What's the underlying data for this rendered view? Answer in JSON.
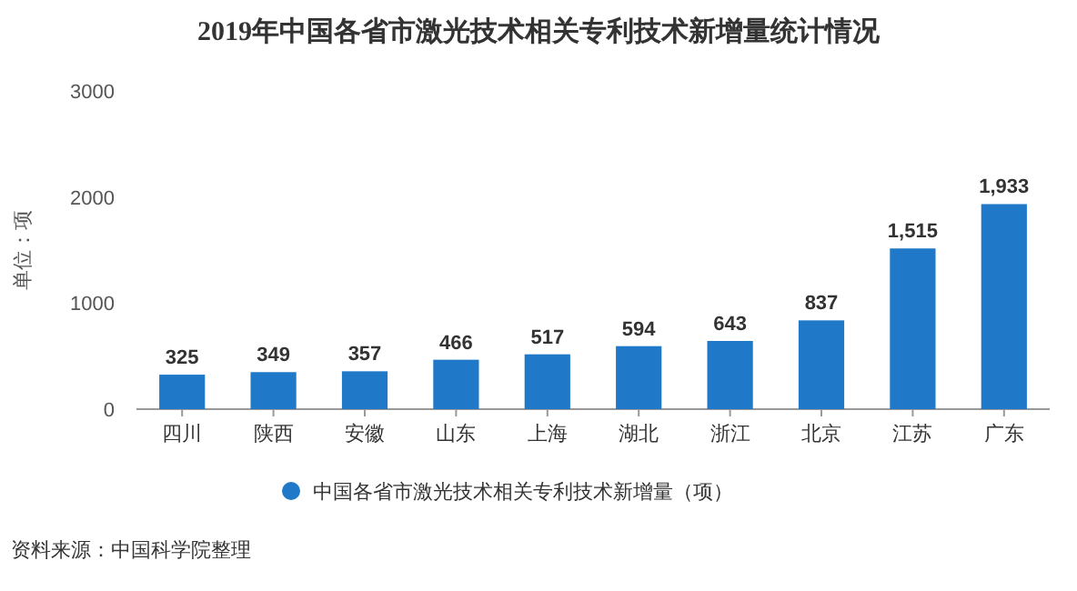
{
  "chart_data": {
    "type": "bar",
    "title": "2019年中国各省市激光技术相关专利技术新增量统计情况",
    "ylabel": "单位：项",
    "categories": [
      "四川",
      "陕西",
      "安徽",
      "山东",
      "上海",
      "湖北",
      "浙江",
      "北京",
      "江苏",
      "广东"
    ],
    "series": [
      {
        "name": "中国各省市激光技术相关专利技术新增量（项）",
        "color": "#1f78c8",
        "values": [
          325,
          349,
          357,
          466,
          517,
          594,
          643,
          837,
          1515,
          1933
        ]
      }
    ],
    "value_labels": [
      "325",
      "349",
      "357",
      "466",
      "517",
      "594",
      "643",
      "837",
      "1,515",
      "1,933"
    ],
    "ylim": [
      0,
      3000
    ],
    "yticks": [
      0,
      1000,
      2000,
      3000
    ],
    "legend": "bottom",
    "marker": "circle",
    "annotations": [
      "资料来源：中国科学院整理"
    ]
  }
}
